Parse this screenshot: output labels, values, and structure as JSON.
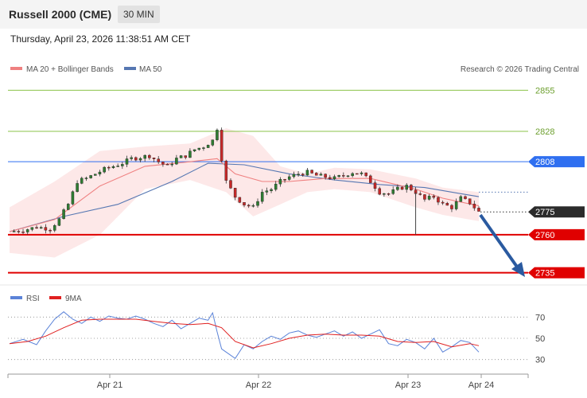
{
  "header": {
    "title": "Russell 2000 (CME)",
    "timeframe": "30 MIN",
    "datetime": "Thursday, April 23, 2026 11:38:51 AM CET"
  },
  "legend": {
    "ma20": "MA 20 + Bollinger Bands",
    "ma50": "MA 50",
    "credit": "Research © 2026 Trading Central",
    "rsi": "RSI",
    "rsi_ma": "9MA"
  },
  "colors": {
    "bull": "#2e7d32",
    "bear": "#c62828",
    "band": "#fde4e4",
    "ma20": "#ef8080",
    "ma50": "#5677b2",
    "support": "#e00000",
    "resistance_green": "#8bc34a",
    "resistance_blue": "#2f6ff0",
    "arrow": "#2a5aa0",
    "rsi": "#5b83d8",
    "rsi_ma": "#e02020"
  },
  "chart_data": [
    {
      "type": "candlestick",
      "x_labels": [
        "Apr 21",
        "Apr 22",
        "Apr 23",
        "Apr 24"
      ],
      "ylim": [
        2728,
        2862
      ],
      "grid": false,
      "price_levels": [
        {
          "value": 2855,
          "label": "2855",
          "kind": "resistance"
        },
        {
          "value": 2828,
          "label": "2828",
          "kind": "resistance"
        },
        {
          "value": 2808,
          "label": "2808",
          "kind": "pivot"
        },
        {
          "value": 2775,
          "label": "2775",
          "kind": "last"
        },
        {
          "value": 2760,
          "label": "2760",
          "kind": "support"
        },
        {
          "value": 2735,
          "label": "2735",
          "kind": "support"
        }
      ],
      "path": [
        [
          0,
          2762
        ],
        [
          3,
          2763
        ],
        [
          6,
          2765
        ],
        [
          9,
          2764
        ],
        [
          11,
          2770
        ],
        [
          13,
          2780
        ],
        [
          15,
          2795
        ],
        [
          17,
          2797
        ],
        [
          19,
          2800
        ],
        [
          21,
          2803
        ],
        [
          23,
          2805
        ],
        [
          25,
          2807
        ],
        [
          27,
          2810
        ],
        [
          29,
          2811
        ],
        [
          31,
          2812
        ],
        [
          33,
          2808
        ],
        [
          35,
          2805
        ],
        [
          37,
          2810
        ],
        [
          39,
          2812
        ],
        [
          41,
          2816
        ],
        [
          43,
          2818
        ],
        [
          45,
          2822
        ],
        [
          46,
          2830
        ],
        [
          47,
          2810
        ],
        [
          48,
          2795
        ],
        [
          50,
          2785
        ],
        [
          52,
          2780
        ],
        [
          54,
          2778
        ],
        [
          56,
          2788
        ],
        [
          58,
          2790
        ],
        [
          60,
          2795
        ],
        [
          62,
          2798
        ],
        [
          64,
          2800
        ],
        [
          66,
          2801
        ],
        [
          68,
          2799
        ],
        [
          70,
          2798
        ],
        [
          72,
          2797
        ],
        [
          74,
          2799
        ],
        [
          76,
          2801
        ],
        [
          78,
          2800
        ],
        [
          80,
          2795
        ],
        [
          82,
          2788
        ],
        [
          84,
          2787
        ],
        [
          86,
          2790
        ],
        [
          88,
          2792
        ],
        [
          90,
          2788
        ],
        [
          92,
          2783
        ],
        [
          94,
          2785
        ],
        [
          96,
          2780
        ],
        [
          98,
          2778
        ],
        [
          100,
          2784
        ],
        [
          102,
          2781
        ],
        [
          104,
          2775
        ]
      ],
      "ma50": [
        [
          0,
          2762
        ],
        [
          12,
          2772
        ],
        [
          24,
          2780
        ],
        [
          36,
          2795
        ],
        [
          44,
          2807
        ],
        [
          52,
          2806
        ],
        [
          62,
          2800
        ],
        [
          72,
          2796
        ],
        [
          82,
          2793
        ],
        [
          92,
          2791
        ],
        [
          100,
          2787
        ],
        [
          104,
          2785
        ]
      ],
      "ma20": [
        [
          0,
          2762
        ],
        [
          10,
          2770
        ],
        [
          20,
          2792
        ],
        [
          30,
          2805
        ],
        [
          40,
          2808
        ],
        [
          46,
          2810
        ],
        [
          50,
          2800
        ],
        [
          56,
          2795
        ],
        [
          62,
          2795
        ],
        [
          70,
          2797
        ],
        [
          80,
          2797
        ],
        [
          90,
          2790
        ],
        [
          96,
          2784
        ],
        [
          104,
          2779
        ]
      ],
      "bb_upper": [
        [
          0,
          2778
        ],
        [
          10,
          2795
        ],
        [
          20,
          2815
        ],
        [
          30,
          2818
        ],
        [
          40,
          2820
        ],
        [
          48,
          2830
        ],
        [
          54,
          2825
        ],
        [
          60,
          2805
        ],
        [
          66,
          2800
        ],
        [
          72,
          2804
        ],
        [
          80,
          2803
        ],
        [
          90,
          2797
        ],
        [
          96,
          2791
        ],
        [
          104,
          2788
        ]
      ],
      "bb_lower": [
        [
          0,
          2748
        ],
        [
          10,
          2745
        ],
        [
          20,
          2760
        ],
        [
          30,
          2790
        ],
        [
          40,
          2796
        ],
        [
          48,
          2788
        ],
        [
          54,
          2772
        ],
        [
          60,
          2780
        ],
        [
          66,
          2788
        ],
        [
          72,
          2790
        ],
        [
          80,
          2788
        ],
        [
          90,
          2778
        ],
        [
          96,
          2773
        ],
        [
          104,
          2769
        ]
      ]
    },
    {
      "type": "line",
      "ylim": [
        20,
        80
      ],
      "ticks": [
        70,
        50,
        30
      ],
      "series": [
        {
          "name": "RSI",
          "x": [
            0,
            3,
            6,
            8,
            10,
            12,
            14,
            16,
            18,
            20,
            22,
            24,
            26,
            28,
            30,
            32,
            34,
            36,
            38,
            40,
            42,
            44,
            45,
            46,
            47,
            48,
            50,
            52,
            54,
            56,
            58,
            60,
            62,
            64,
            66,
            68,
            70,
            72,
            74,
            76,
            78,
            80,
            82,
            84,
            86,
            88,
            90,
            92,
            94,
            96,
            98,
            100,
            102,
            104
          ],
          "values": [
            45,
            49,
            44,
            57,
            68,
            75,
            68,
            64,
            70,
            66,
            71,
            69,
            68,
            71,
            68,
            64,
            61,
            67,
            59,
            64,
            69,
            67,
            74,
            56,
            40,
            37,
            31,
            44,
            40,
            47,
            52,
            49,
            55,
            57,
            53,
            51,
            54,
            57,
            52,
            56,
            50,
            54,
            58,
            45,
            43,
            49,
            46,
            40,
            50,
            37,
            42,
            48,
            46,
            37
          ]
        },
        {
          "name": "9MA",
          "x": [
            0,
            4,
            8,
            12,
            16,
            20,
            24,
            28,
            32,
            36,
            40,
            44,
            47,
            50,
            54,
            58,
            62,
            66,
            70,
            74,
            78,
            82,
            86,
            90,
            94,
            98,
            102,
            104
          ],
          "values": [
            45,
            47,
            52,
            60,
            67,
            68,
            68,
            68,
            66,
            64,
            63,
            64,
            60,
            47,
            41,
            45,
            50,
            53,
            54,
            53,
            53,
            52,
            47,
            46,
            47,
            42,
            45,
            43
          ]
        }
      ]
    }
  ]
}
